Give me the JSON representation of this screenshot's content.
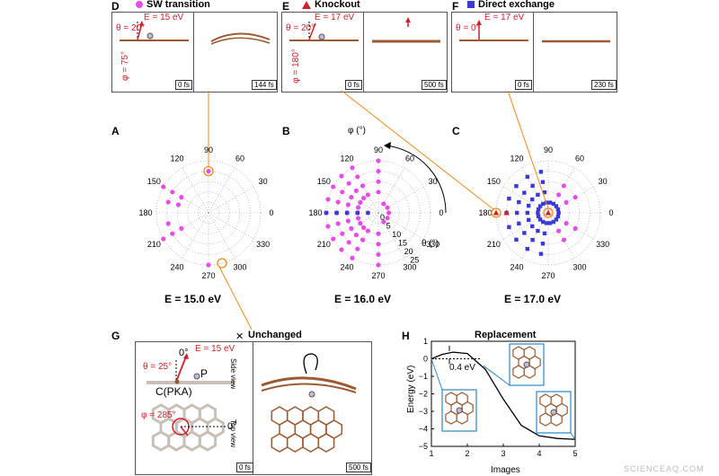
{
  "panels": {
    "D": {
      "letter": "D",
      "title": "SW transition",
      "energy": "E = 15 eV",
      "theta": "θ = 20°",
      "phi": "φ = 75°",
      "t0": "0 fs",
      "t1": "144 fs"
    },
    "E": {
      "letter": "E",
      "title": "Knockout",
      "energy": "E = 17 eV",
      "theta": "θ = 20°",
      "phi": "φ = 180°",
      "t0": "0 fs",
      "t1": "500 fs"
    },
    "F": {
      "letter": "F",
      "title": "Direct exchange",
      "energy": "E = 17 eV",
      "theta": "θ = 0°",
      "t0": "0 fs",
      "t1": "230 fs"
    },
    "A": {
      "letter": "A",
      "caption": "E = 15.0 eV"
    },
    "B": {
      "letter": "B",
      "caption": "E = 16.0 eV",
      "phi_label": "φ (°)",
      "theta_label": "θ (°)"
    },
    "C": {
      "letter": "C",
      "caption": "E = 17.0 eV"
    },
    "G": {
      "letter": "G",
      "title": "Unchanged",
      "energy": "E = 15 eV",
      "theta": "θ = 25°",
      "phi": "φ = 285°",
      "zero_top": "0°",
      "zero_side": "0°",
      "p_label": "P",
      "c_label": "C(PKA)",
      "side_view": "Side view",
      "top_view": "Top view",
      "t0": "0 fs",
      "t1": "500 fs"
    },
    "H": {
      "letter": "H",
      "title": "Replacement",
      "barrier": "0.4 eV",
      "ylabel": "Energy (eV)",
      "xlabel": "Images"
    }
  },
  "polar_angle_labels": [
    "90",
    "60",
    "30",
    "0",
    "330",
    "300",
    "270",
    "240",
    "210",
    "180",
    "150",
    "120"
  ],
  "polar_radial_labels": [
    "0",
    "5",
    "10",
    "15",
    "20",
    "25"
  ],
  "colors": {
    "sw": "#e64ce6",
    "knockout": "#d0202a",
    "exchange": "#3a3ad8",
    "highlight": "#ee8a1a",
    "atom": "#9a5a32",
    "grid": "#999999"
  },
  "chart_data": {
    "type": "line",
    "title": "Replacement",
    "xlabel": "Images",
    "ylabel": "Energy (eV)",
    "xlim": [
      1,
      5
    ],
    "ylim": [
      -5,
      1
    ],
    "x_ticks": [
      "1",
      "2",
      "3",
      "4",
      "5"
    ],
    "y_ticks": [
      "1",
      "0",
      "−1",
      "−2",
      "−3",
      "−4",
      "−5"
    ],
    "series": [
      {
        "x": [
          1,
          1.3,
          1.6,
          2.0,
          2.5,
          3.0,
          3.5,
          4.0,
          4.5,
          5.0
        ],
        "y": [
          0,
          0.25,
          0.38,
          0.3,
          -0.6,
          -2.3,
          -3.8,
          -4.4,
          -4.55,
          -4.6
        ]
      }
    ]
  },
  "watermark": "SCIENCEAQ.COM"
}
